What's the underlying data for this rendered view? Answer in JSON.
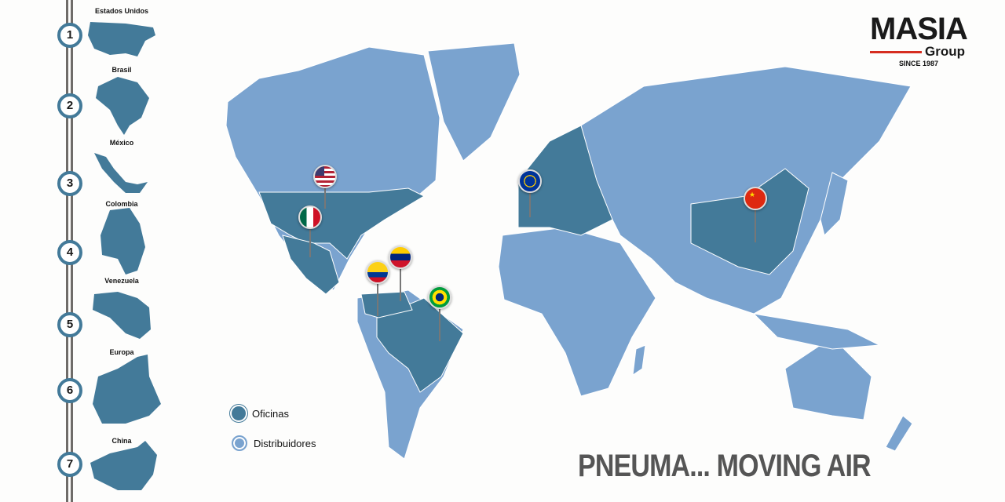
{
  "sidebar": {
    "items": [
      {
        "number": "1",
        "label": "Estados Unidos"
      },
      {
        "number": "2",
        "label": "Brasil"
      },
      {
        "number": "3",
        "label": "México"
      },
      {
        "number": "4",
        "label": "Colombia"
      },
      {
        "number": "5",
        "label": "Venezuela"
      },
      {
        "number": "6",
        "label": "Europa"
      },
      {
        "number": "7",
        "label": "China"
      }
    ]
  },
  "legend": {
    "offices": {
      "label": "Oficinas",
      "color": "#437a99"
    },
    "distributors": {
      "label": "Distribuidores",
      "color": "#7aa3cf"
    }
  },
  "logo": {
    "name": "MASIA",
    "group": "Group",
    "since": "SINCE 1987",
    "accent": "#d62d20"
  },
  "slogan": "PNEUMA... MOVING AIR",
  "pins": [
    "usa-flag-icon",
    "mexico-flag-icon",
    "colombia-flag-icon",
    "venezuela-flag-icon",
    "brazil-flag-icon",
    "eu-flag-icon",
    "china-flag-icon"
  ]
}
